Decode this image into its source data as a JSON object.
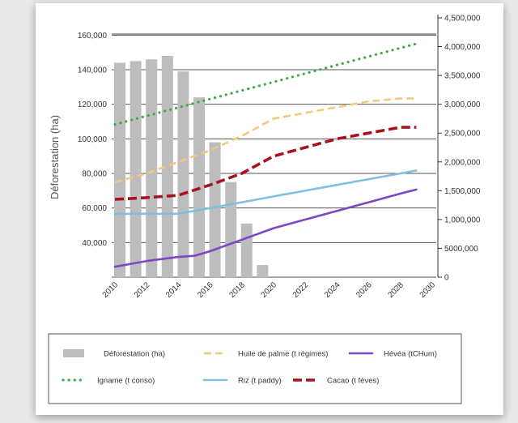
{
  "chart_data": {
    "type": "bar+line",
    "title": "",
    "ylabel_left": "Déforestation (ha)",
    "x_ticks": [
      "2010",
      "2012",
      "2014",
      "2016",
      "2018",
      "2020",
      "2022",
      "2024",
      "2026",
      "2028",
      "2030"
    ],
    "left_ticks": [
      "40,000",
      "60,000",
      "80,000",
      "100,000",
      "120,000",
      "140,000",
      "160,000"
    ],
    "right_ticks": [
      "0",
      "5000,000",
      "1,000,000",
      "1,500,000",
      "2,000,000",
      "2,500,000",
      "3,000,000",
      "3,500,000",
      "4,000,000",
      "4,500,000"
    ],
    "left_ylim": [
      20000,
      170000
    ],
    "right_ylim": [
      0,
      4500000
    ],
    "xlim": [
      2010,
      2030
    ],
    "grid": "horizontal",
    "legend_position": "bottom",
    "bars": {
      "name": "Déforestation (ha)",
      "color": "#bdbdbd",
      "x": [
        2010,
        2011,
        2012,
        2013,
        2014,
        2015,
        2016,
        2017,
        2018,
        2019
      ],
      "values": [
        144000,
        145000,
        146000,
        148000,
        139000,
        124000,
        98000,
        75000,
        51000,
        27000
      ]
    },
    "series": [
      {
        "name": "Huile de palme (t régimes)",
        "color": "#f6c77b",
        "style": "dashed",
        "x": [
          2010,
          2012,
          2014,
          2016,
          2018,
          2020,
          2022,
          2024,
          2026,
          2028,
          2029
        ],
        "values": [
          1650000,
          1800000,
          2000000,
          2200000,
          2450000,
          2750000,
          2850000,
          2950000,
          3050000,
          3100000,
          3100000
        ]
      },
      {
        "name": "Hévéa (tCHum)",
        "color": "#8046c4",
        "style": "solid",
        "x": [
          2010,
          2012,
          2014,
          2015,
          2016,
          2017,
          2018,
          2020,
          2022,
          2024,
          2026,
          2028,
          2029
        ],
        "values": [
          180000,
          280000,
          350000,
          370000,
          450000,
          550000,
          650000,
          850000,
          1000000,
          1150000,
          1300000,
          1450000,
          1520000
        ]
      },
      {
        "name": "Igname (t conso)",
        "color": "#3daa47",
        "style": "dotted",
        "x": [
          2010,
          2029
        ],
        "values": [
          2650000,
          4050000
        ]
      },
      {
        "name": "Riz (t paddy)",
        "color": "#80bfe0",
        "style": "solid",
        "x": [
          2010,
          2014,
          2016,
          2018,
          2020,
          2022,
          2024,
          2026,
          2028,
          2029
        ],
        "values": [
          1100000,
          1100000,
          1200000,
          1300000,
          1400000,
          1500000,
          1600000,
          1700000,
          1800000,
          1850000
        ]
      },
      {
        "name": "Cacao (t fèves)",
        "color": "#a8141e",
        "style": "dashed-thick",
        "x": [
          2010,
          2012,
          2014,
          2016,
          2018,
          2020,
          2022,
          2024,
          2026,
          2028,
          2029
        ],
        "values": [
          1350000,
          1380000,
          1420000,
          1600000,
          1800000,
          2100000,
          2250000,
          2400000,
          2500000,
          2600000,
          2600000
        ]
      }
    ],
    "legend_order": [
      "Déforestation (ha)",
      "Huile de palme (t régimes)",
      "Hévéa (tCHum)",
      "Igname (t conso)",
      "Riz (t paddy)",
      "Cacao (t fèves)"
    ]
  }
}
